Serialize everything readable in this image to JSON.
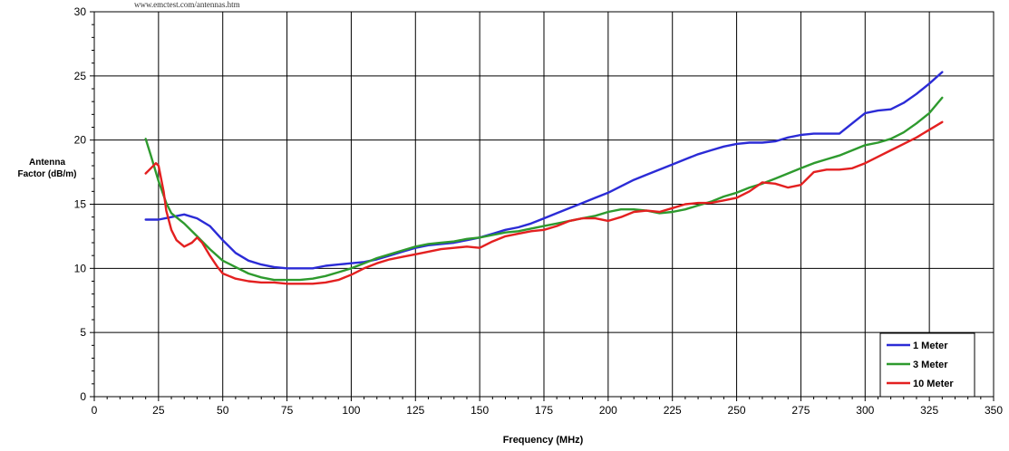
{
  "chart_data": {
    "type": "line",
    "url_text": "www.emctest.com/antennas.htm",
    "ylabel_lines": [
      "Antenna",
      "Factor (dB/m)"
    ],
    "xlabel": "Frequency (MHz)",
    "xlim": [
      0,
      350
    ],
    "ylim": [
      0,
      30
    ],
    "x_ticks": [
      0,
      25,
      50,
      75,
      100,
      125,
      150,
      175,
      200,
      225,
      250,
      275,
      300,
      325,
      350
    ],
    "y_ticks": [
      0,
      5,
      10,
      15,
      20,
      25,
      30
    ],
    "grid": true,
    "legend_position": "bottom-right",
    "series": [
      {
        "name": "1 Meter",
        "color": "#2b2bd6",
        "points": [
          [
            20,
            13.8
          ],
          [
            25,
            13.8
          ],
          [
            30,
            14.0
          ],
          [
            35,
            14.2
          ],
          [
            40,
            13.9
          ],
          [
            45,
            13.3
          ],
          [
            50,
            12.2
          ],
          [
            55,
            11.2
          ],
          [
            60,
            10.6
          ],
          [
            65,
            10.3
          ],
          [
            70,
            10.1
          ],
          [
            75,
            10.0
          ],
          [
            80,
            10.0
          ],
          [
            85,
            10.0
          ],
          [
            90,
            10.2
          ],
          [
            95,
            10.3
          ],
          [
            100,
            10.4
          ],
          [
            105,
            10.5
          ],
          [
            110,
            10.7
          ],
          [
            115,
            11.0
          ],
          [
            120,
            11.3
          ],
          [
            125,
            11.6
          ],
          [
            130,
            11.8
          ],
          [
            135,
            11.9
          ],
          [
            140,
            12.0
          ],
          [
            145,
            12.2
          ],
          [
            150,
            12.4
          ],
          [
            155,
            12.7
          ],
          [
            160,
            13.0
          ],
          [
            165,
            13.2
          ],
          [
            170,
            13.5
          ],
          [
            175,
            13.9
          ],
          [
            180,
            14.3
          ],
          [
            185,
            14.7
          ],
          [
            190,
            15.1
          ],
          [
            195,
            15.5
          ],
          [
            200,
            15.9
          ],
          [
            205,
            16.4
          ],
          [
            210,
            16.9
          ],
          [
            215,
            17.3
          ],
          [
            220,
            17.7
          ],
          [
            225,
            18.1
          ],
          [
            230,
            18.5
          ],
          [
            235,
            18.9
          ],
          [
            240,
            19.2
          ],
          [
            245,
            19.5
          ],
          [
            250,
            19.7
          ],
          [
            255,
            19.8
          ],
          [
            260,
            19.8
          ],
          [
            265,
            19.9
          ],
          [
            270,
            20.2
          ],
          [
            275,
            20.4
          ],
          [
            280,
            20.5
          ],
          [
            285,
            20.5
          ],
          [
            290,
            20.5
          ],
          [
            295,
            21.3
          ],
          [
            300,
            22.1
          ],
          [
            305,
            22.3
          ],
          [
            310,
            22.4
          ],
          [
            315,
            22.9
          ],
          [
            320,
            23.6
          ],
          [
            325,
            24.4
          ],
          [
            330,
            25.3
          ]
        ]
      },
      {
        "name": "3 Meter",
        "color": "#2e9a2e",
        "points": [
          [
            20,
            20.1
          ],
          [
            22,
            18.8
          ],
          [
            25,
            16.8
          ],
          [
            28,
            15.1
          ],
          [
            30,
            14.3
          ],
          [
            35,
            13.5
          ],
          [
            40,
            12.5
          ],
          [
            45,
            11.5
          ],
          [
            50,
            10.6
          ],
          [
            55,
            10.1
          ],
          [
            60,
            9.6
          ],
          [
            65,
            9.3
          ],
          [
            70,
            9.1
          ],
          [
            75,
            9.1
          ],
          [
            80,
            9.1
          ],
          [
            85,
            9.2
          ],
          [
            90,
            9.4
          ],
          [
            95,
            9.7
          ],
          [
            100,
            10.0
          ],
          [
            105,
            10.4
          ],
          [
            110,
            10.8
          ],
          [
            115,
            11.1
          ],
          [
            120,
            11.4
          ],
          [
            125,
            11.7
          ],
          [
            130,
            11.9
          ],
          [
            135,
            12.0
          ],
          [
            140,
            12.1
          ],
          [
            145,
            12.3
          ],
          [
            150,
            12.4
          ],
          [
            155,
            12.6
          ],
          [
            160,
            12.8
          ],
          [
            165,
            12.9
          ],
          [
            170,
            13.1
          ],
          [
            175,
            13.3
          ],
          [
            180,
            13.5
          ],
          [
            185,
            13.7
          ],
          [
            190,
            13.9
          ],
          [
            195,
            14.1
          ],
          [
            200,
            14.4
          ],
          [
            205,
            14.6
          ],
          [
            210,
            14.6
          ],
          [
            215,
            14.5
          ],
          [
            220,
            14.3
          ],
          [
            225,
            14.4
          ],
          [
            230,
            14.6
          ],
          [
            235,
            14.9
          ],
          [
            240,
            15.2
          ],
          [
            245,
            15.6
          ],
          [
            250,
            15.9
          ],
          [
            255,
            16.3
          ],
          [
            260,
            16.6
          ],
          [
            265,
            17.0
          ],
          [
            270,
            17.4
          ],
          [
            275,
            17.8
          ],
          [
            280,
            18.2
          ],
          [
            285,
            18.5
          ],
          [
            290,
            18.8
          ],
          [
            295,
            19.2
          ],
          [
            300,
            19.6
          ],
          [
            305,
            19.8
          ],
          [
            310,
            20.1
          ],
          [
            315,
            20.6
          ],
          [
            320,
            21.3
          ],
          [
            325,
            22.1
          ],
          [
            330,
            23.3
          ]
        ]
      },
      {
        "name": "10 Meter",
        "color": "#e32020",
        "points": [
          [
            20,
            17.4
          ],
          [
            22,
            17.8
          ],
          [
            24,
            18.2
          ],
          [
            25,
            18.0
          ],
          [
            27,
            16.0
          ],
          [
            28,
            14.5
          ],
          [
            30,
            13.0
          ],
          [
            32,
            12.2
          ],
          [
            35,
            11.7
          ],
          [
            38,
            12.0
          ],
          [
            40,
            12.4
          ],
          [
            42,
            12.0
          ],
          [
            45,
            11.0
          ],
          [
            48,
            10.1
          ],
          [
            50,
            9.6
          ],
          [
            55,
            9.2
          ],
          [
            60,
            9.0
          ],
          [
            65,
            8.9
          ],
          [
            70,
            8.9
          ],
          [
            75,
            8.8
          ],
          [
            80,
            8.8
          ],
          [
            85,
            8.8
          ],
          [
            90,
            8.9
          ],
          [
            95,
            9.1
          ],
          [
            100,
            9.5
          ],
          [
            105,
            10.0
          ],
          [
            110,
            10.4
          ],
          [
            115,
            10.7
          ],
          [
            120,
            10.9
          ],
          [
            125,
            11.1
          ],
          [
            130,
            11.3
          ],
          [
            135,
            11.5
          ],
          [
            140,
            11.6
          ],
          [
            145,
            11.7
          ],
          [
            150,
            11.6
          ],
          [
            155,
            12.1
          ],
          [
            160,
            12.5
          ],
          [
            165,
            12.7
          ],
          [
            170,
            12.9
          ],
          [
            175,
            13.0
          ],
          [
            180,
            13.3
          ],
          [
            185,
            13.7
          ],
          [
            190,
            13.9
          ],
          [
            195,
            13.9
          ],
          [
            200,
            13.7
          ],
          [
            205,
            14.0
          ],
          [
            210,
            14.4
          ],
          [
            215,
            14.5
          ],
          [
            220,
            14.4
          ],
          [
            225,
            14.7
          ],
          [
            230,
            15.0
          ],
          [
            235,
            15.1
          ],
          [
            240,
            15.1
          ],
          [
            245,
            15.3
          ],
          [
            250,
            15.5
          ],
          [
            255,
            16.0
          ],
          [
            260,
            16.7
          ],
          [
            265,
            16.6
          ],
          [
            270,
            16.3
          ],
          [
            275,
            16.5
          ],
          [
            280,
            17.5
          ],
          [
            285,
            17.7
          ],
          [
            290,
            17.7
          ],
          [
            295,
            17.8
          ],
          [
            300,
            18.2
          ],
          [
            305,
            18.7
          ],
          [
            310,
            19.2
          ],
          [
            315,
            19.7
          ],
          [
            320,
            20.2
          ],
          [
            325,
            20.8
          ],
          [
            330,
            21.4
          ]
        ]
      }
    ]
  }
}
